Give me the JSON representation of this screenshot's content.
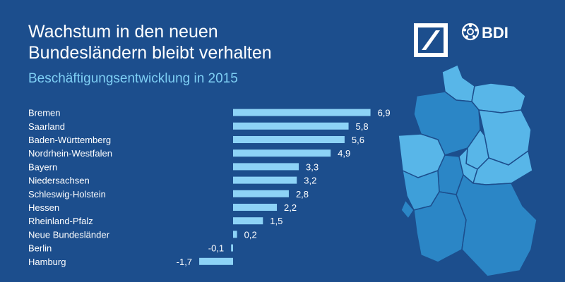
{
  "header": {
    "title_line1": "Wachstum in den neuen",
    "title_line2": "Bundesländern bleibt verhalten",
    "subtitle": "Beschäftigungsentwicklung in 2015"
  },
  "logos": {
    "deutsche_bank": "deutsche-bank-logo",
    "bdi_text": "BDI"
  },
  "colors": {
    "background": "#1c4e8d",
    "bar": "#8dd3f6",
    "text": "#ffffff",
    "subtitle": "#7fd0f5",
    "map_light": "#58b6e8",
    "map_mid": "#3e9fd9",
    "map_dark": "#2b86c6"
  },
  "chart_data": {
    "type": "bar",
    "orientation": "horizontal",
    "title": "Beschäftigungsentwicklung in 2015",
    "categories": [
      "Bremen",
      "Saarland",
      "Baden-Württemberg",
      "Nordrhein-Westfalen",
      "Bayern",
      "Niedersachsen",
      "Schleswig-Holstein",
      "Hessen",
      "Rheinland-Pfalz",
      "Neue Bundesländer",
      "Berlin",
      "Hamburg"
    ],
    "values": [
      6.9,
      5.8,
      5.6,
      4.9,
      3.3,
      3.2,
      2.8,
      2.2,
      1.5,
      0.2,
      -0.1,
      -1.7
    ],
    "value_labels": [
      "6,9",
      "5,8",
      "5,6",
      "4,9",
      "3,3",
      "3,2",
      "2,8",
      "2,2",
      "1,5",
      "0,2",
      "-0,1",
      "-1,7"
    ],
    "xlim": [
      -1.7,
      6.9
    ],
    "xlabel": "",
    "ylabel": "",
    "grid": false
  }
}
